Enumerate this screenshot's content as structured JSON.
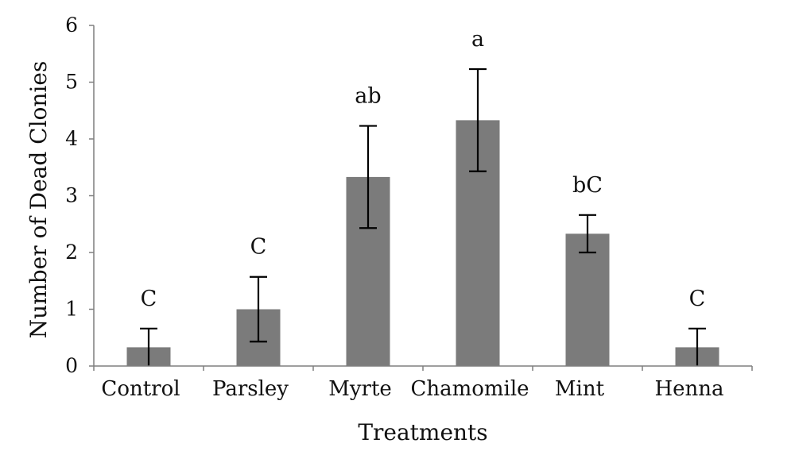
{
  "chart_data": {
    "type": "bar",
    "title": "",
    "xlabel": "Treatments",
    "ylabel": "Number of Dead Clonies",
    "ylim": [
      0,
      6
    ],
    "yticks": [
      "0",
      "1",
      "2",
      "3",
      "4",
      "5",
      "6"
    ],
    "grid": false,
    "categories": [
      "Control",
      "Parsley",
      "Myrte",
      "Chamomile",
      "Mint",
      "Henna"
    ],
    "values": [
      0.33,
      1.0,
      3.33,
      4.33,
      2.33,
      0.33
    ],
    "error_low": [
      0.33,
      0.57,
      0.9,
      0.9,
      0.33,
      0.33
    ],
    "error_high": [
      0.33,
      0.57,
      0.9,
      0.9,
      0.33,
      0.33
    ],
    "annotations": [
      "C",
      "C",
      "ab",
      "a",
      "bC",
      "C"
    ],
    "colors": {
      "bar": "#7b7b7b",
      "error": "#000000",
      "axis": "#7f7f7f"
    }
  }
}
